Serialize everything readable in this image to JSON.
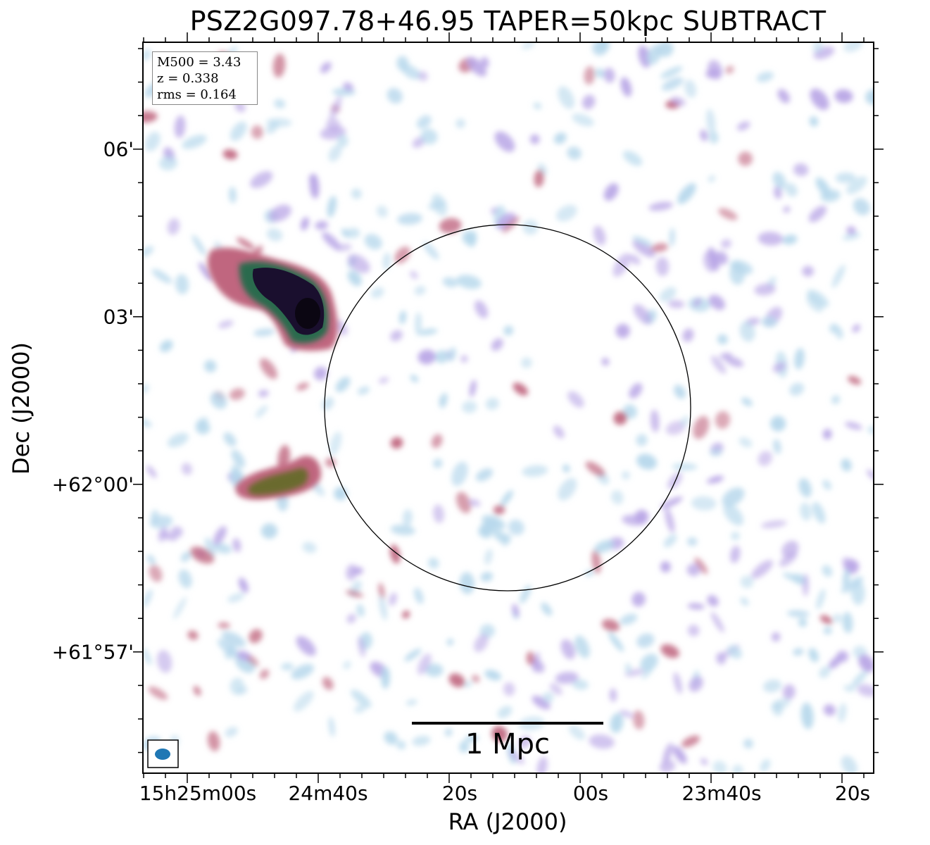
{
  "title": "PSZ2G097.78+46.95 TAPER=50kpc SUBTRACT",
  "axes": {
    "xlabel": "RA (J2000)",
    "ylabel": "Dec (J2000)",
    "yticks": [
      "06'",
      "03'",
      "+62°00'",
      "+61°57'"
    ],
    "xticks": [
      "15h25m00s",
      "24m40s",
      "20s",
      "00s",
      "23m40s",
      "20s"
    ]
  },
  "info": {
    "m500": "M500 = 3.43",
    "z": "z = 0.338",
    "rms": "rms = 0.164"
  },
  "scalebar": {
    "label": "1 Mpc"
  },
  "colors": {
    "faint": "#b7d8ec",
    "mid": "#b9a6e6",
    "bright": "#c0667f",
    "core": "#1a0f2e",
    "halo": "#2b6a4d",
    "beam": "#1f77b4"
  }
}
